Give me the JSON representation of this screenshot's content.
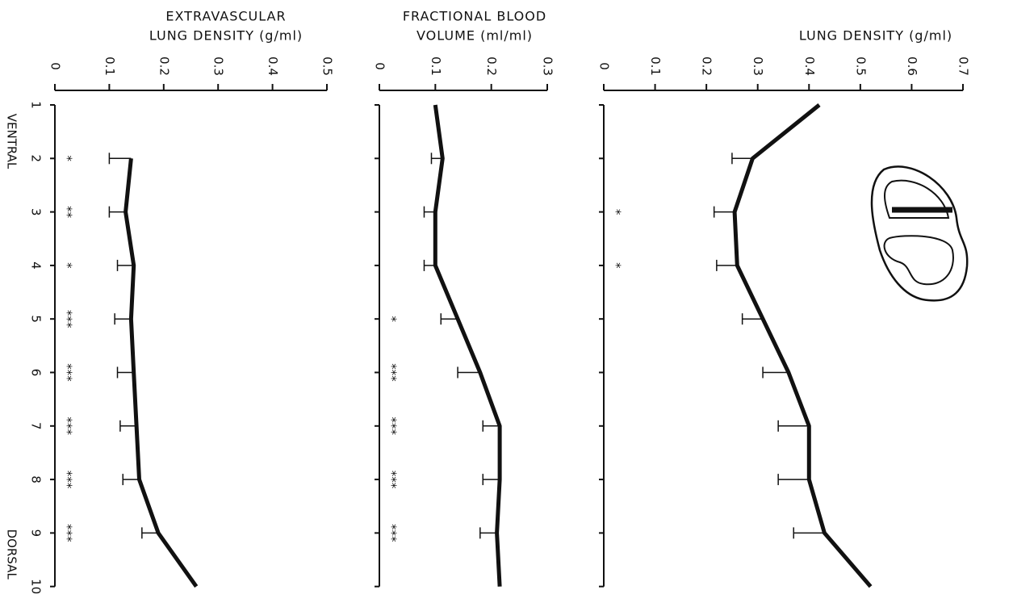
{
  "chart_data": [
    {
      "type": "line",
      "title": [
        "EXTRAVASCULAR",
        "LUNG DENSITY (g/ml)"
      ],
      "categories": [
        "1",
        "2",
        "3",
        "4",
        "5",
        "6",
        "7",
        "8",
        "9",
        "10"
      ],
      "ylim": [
        0,
        0.5
      ],
      "yticks": [
        0,
        0.1,
        0.2,
        0.3,
        0.4,
        0.5
      ],
      "series": [
        {
          "color": "#111111",
          "values": [
            null,
            0.14,
            0.13,
            0.145,
            0.14,
            0.145,
            0.15,
            0.155,
            0.19,
            0.26
          ],
          "errors": [
            null,
            0.04,
            0.03,
            0.03,
            0.03,
            0.03,
            0.03,
            0.03,
            0.03,
            null
          ]
        }
      ],
      "annotations": [
        null,
        "*",
        "**",
        "*",
        "***",
        "***",
        "***",
        "***",
        "***",
        null
      ]
    },
    {
      "type": "line",
      "title": [
        "FRACTIONAL BLOOD",
        "VOLUME (ml/ml)"
      ],
      "categories": [
        "1",
        "2",
        "3",
        "4",
        "5",
        "6",
        "7",
        "8",
        "9",
        "10"
      ],
      "ylim": [
        0,
        0.3
      ],
      "yticks": [
        0,
        0.1,
        0.2,
        0.3
      ],
      "series": [
        {
          "color": "#111111",
          "values": [
            0.1,
            0.113,
            0.1,
            0.1,
            0.14,
            0.18,
            0.215,
            0.215,
            0.21,
            0.215
          ],
          "errors": [
            null,
            0.02,
            0.02,
            0.02,
            0.03,
            0.04,
            0.03,
            0.03,
            0.03,
            null
          ]
        }
      ],
      "annotations": [
        null,
        null,
        null,
        null,
        "*",
        "***",
        "***",
        "***",
        "***",
        null
      ]
    },
    {
      "type": "line",
      "title": [
        "LUNG DENSITY (g/ml)"
      ],
      "categories": [
        "1",
        "2",
        "3",
        "4",
        "5",
        "6",
        "7",
        "8",
        "9",
        "10"
      ],
      "ylim": [
        0,
        0.7
      ],
      "yticks": [
        0,
        0.1,
        0.2,
        0.3,
        0.4,
        0.5,
        0.6,
        0.7
      ],
      "series": [
        {
          "color": "#111111",
          "values": [
            0.42,
            0.29,
            0.255,
            0.26,
            0.31,
            0.36,
            0.4,
            0.4,
            0.43,
            0.52
          ],
          "errors": [
            null,
            0.04,
            0.04,
            0.04,
            0.04,
            0.05,
            0.06,
            0.06,
            0.06,
            null
          ]
        }
      ],
      "annotations": [
        null,
        null,
        "*",
        "*",
        null,
        null,
        null,
        null,
        null,
        null
      ]
    }
  ],
  "category_end_labels": [
    "VENTRAL",
    "DORSAL"
  ]
}
